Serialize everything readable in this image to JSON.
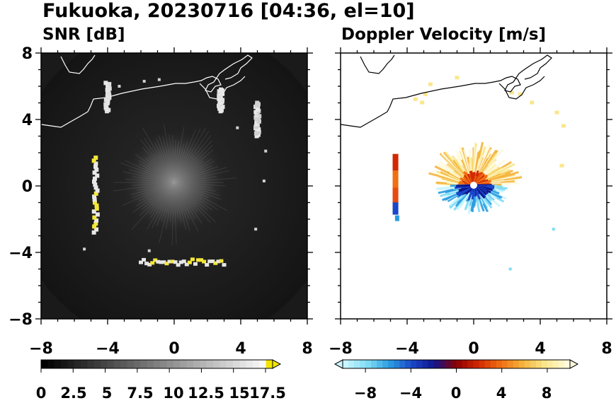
{
  "figure": {
    "title": "Fukuoka, 20230716 [04:36, el=10]"
  },
  "chart_data": [
    {
      "type": "heatmap",
      "title": "SNR [dB]",
      "xlabel": "",
      "ylabel": "",
      "xlim": [
        -8,
        8
      ],
      "ylim": [
        -8,
        8
      ],
      "xticks": [
        "−8",
        "−4",
        "0",
        "4",
        "8"
      ],
      "yticks": [
        "8",
        "4",
        "0",
        "−4",
        "−8"
      ],
      "background_color": "#1a1a1a",
      "echo_clusters": [
        {
          "x": -4.7,
          "y_from": -2.8,
          "y_to": 1.7,
          "color": "#f5e73a"
        },
        {
          "x": -4.0,
          "y_from": 4.5,
          "y_to": 6.2,
          "color": "#e0e0e0"
        },
        {
          "x": 2.8,
          "y_from": 4.5,
          "y_to": 5.8,
          "color": "#e0e0e0"
        },
        {
          "x": 5.0,
          "y_from": 3.0,
          "y_to": 5.0,
          "color": "#d0d0d0"
        },
        {
          "x_from": -2.0,
          "x_to": 3.0,
          "y": -4.6,
          "color": "#f5e73a"
        }
      ],
      "colorbar": {
        "ticks": [
          "0",
          "2.5",
          "5",
          "7.5",
          "10",
          "12.5",
          "15",
          "17.5"
        ],
        "min": 0,
        "max": 17.5,
        "extend": "max",
        "colors": [
          "#000000",
          "#ffffff",
          "#f2e600"
        ]
      }
    },
    {
      "type": "heatmap",
      "title": "Doppler Velocity [m/s]",
      "xlabel": "",
      "ylabel": "",
      "xlim": [
        -8,
        8
      ],
      "ylim": [
        -8,
        8
      ],
      "xticks": [
        "−8",
        "−4",
        "0",
        "4",
        "8"
      ],
      "yticks": [],
      "background_color": "#ffffff",
      "colorbar": {
        "ticks": [
          "−8",
          "−4",
          "0",
          "4",
          "8"
        ],
        "min": -10,
        "max": 10,
        "extend": "both",
        "colors": [
          "#c8f5ff",
          "#7fdcf5",
          "#2a9be0",
          "#1a46c8",
          "#10148c",
          "#8c0000",
          "#d22800",
          "#f06e14",
          "#f5b43c",
          "#fae68c",
          "#fffadc"
        ]
      }
    }
  ],
  "colors": {
    "coastline_left": "#ffffff",
    "coastline_right": "#000000",
    "snr_echo_yellow": "#f5e73a",
    "radar_center_marker": "#ffffff"
  }
}
